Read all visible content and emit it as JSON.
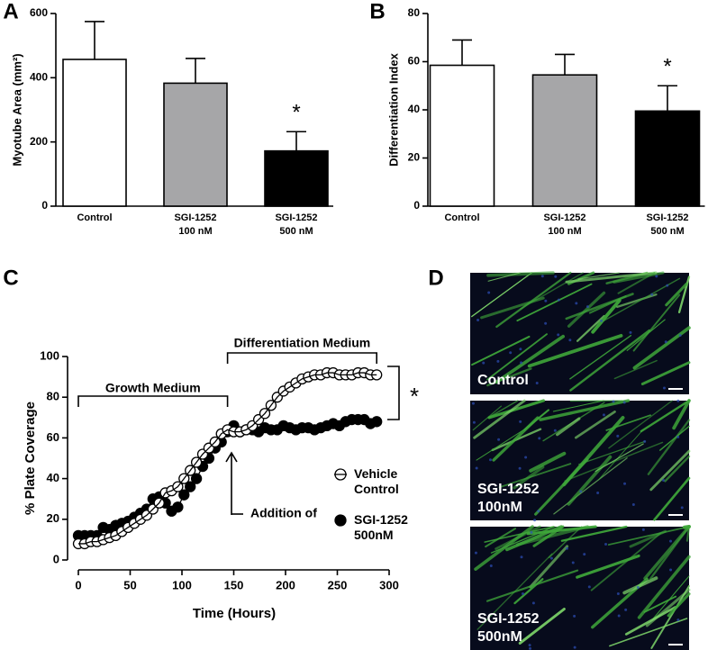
{
  "chart_data": [
    {
      "type": "bar",
      "panel": "A",
      "ylabel": "Myotube Area (mm²)",
      "categories": [
        "Control",
        "SGI-1252 100 nM",
        "SGI-1252 500 nM"
      ],
      "values": [
        457,
        383,
        172
      ],
      "errors": [
        118,
        77,
        60
      ],
      "colors": [
        "#ffffff",
        "#a6a6a8",
        "#000000"
      ],
      "ylim": [
        0,
        600
      ],
      "yticks": [
        0,
        200,
        400,
        600
      ],
      "annotation": "*"
    },
    {
      "type": "bar",
      "panel": "B",
      "ylabel": "Differentiation Index",
      "categories": [
        "Control",
        "SGI-1252 100 nM",
        "SGI-1252 500 nM"
      ],
      "values": [
        58.5,
        54.5,
        39.5
      ],
      "errors": [
        10.5,
        8.5,
        10.5
      ],
      "colors": [
        "#ffffff",
        "#a6a6a8",
        "#000000"
      ],
      "ylim": [
        0,
        80
      ],
      "yticks": [
        0,
        20,
        40,
        60,
        80
      ],
      "annotation": "*"
    },
    {
      "type": "line",
      "panel": "C",
      "xlabel": "Time (Hours)",
      "ylabel": "% Plate Coverage",
      "x": [
        0,
        6,
        12,
        18,
        24,
        30,
        36,
        42,
        48,
        54,
        60,
        66,
        72,
        78,
        84,
        90,
        96,
        102,
        108,
        114,
        120,
        126,
        132,
        138,
        144,
        150,
        156,
        162,
        168,
        174,
        180,
        186,
        192,
        198,
        204,
        210,
        216,
        222,
        228,
        234,
        240,
        246,
        252,
        258,
        264,
        270,
        276,
        282,
        288
      ],
      "series": [
        {
          "name": "SGI-1252 500nM",
          "color": "#000000",
          "filled": true,
          "values": [
            12,
            12,
            12,
            12,
            16,
            15,
            17,
            18,
            19,
            21,
            23,
            25,
            30,
            31,
            28,
            24,
            26,
            32,
            36,
            40,
            46,
            50,
            55,
            58,
            63,
            66,
            63,
            64,
            64,
            63,
            65,
            64,
            64,
            66,
            65,
            64,
            65,
            65,
            64,
            65,
            66,
            67,
            66,
            68,
            69,
            69,
            69,
            67,
            68
          ]
        },
        {
          "name": "Vehicle Control",
          "color": "#000000",
          "filled": false,
          "values": [
            8,
            8,
            9,
            9,
            10,
            11,
            12,
            14,
            16,
            18,
            20,
            22,
            25,
            28,
            33,
            34,
            36,
            40,
            44,
            48,
            52,
            55,
            58,
            62,
            64,
            63,
            63,
            64,
            66,
            69,
            72,
            76,
            80,
            83,
            85,
            87,
            89,
            90,
            91,
            91,
            92,
            92,
            91,
            91,
            91,
            92,
            92,
            91,
            91
          ]
        }
      ],
      "xlim": [
        0,
        300
      ],
      "xticks": [
        0,
        50,
        100,
        150,
        200,
        250,
        300
      ],
      "ylim": [
        0,
        100
      ],
      "yticks": [
        0,
        20,
        40,
        60,
        80,
        100
      ],
      "annotations": [
        "Growth Medium",
        "Differentiation Medium",
        "Addition of",
        "*"
      ]
    }
  ],
  "micrographs": {
    "panel": "D",
    "images": [
      {
        "label": "Control"
      },
      {
        "label": "SGI-1252 100nM"
      },
      {
        "label": "SGI-1252 500nM"
      }
    ]
  }
}
